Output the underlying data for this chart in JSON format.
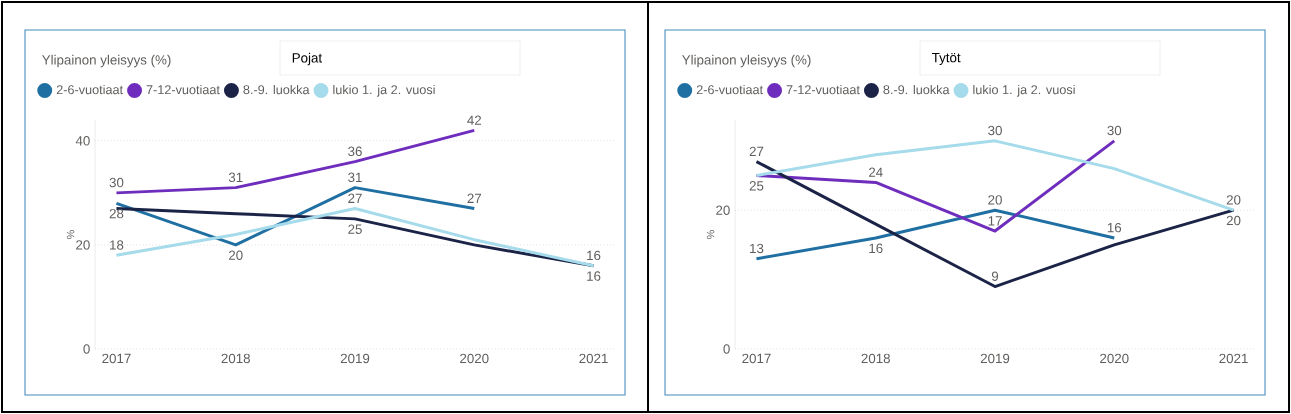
{
  "chart_data": [
    {
      "type": "line",
      "title": "Ylipainon yleisyys (%)",
      "subtitle": "Pojat",
      "ylabel": "%",
      "categories": [
        "2017",
        "2018",
        "2019",
        "2020",
        "2021"
      ],
      "ylim": [
        0,
        44
      ],
      "yticks": [
        0,
        20,
        40
      ],
      "grid": "y",
      "legend": "top left",
      "line_style": "solid",
      "marker": "none",
      "series": [
        {
          "name": "2-6-vuotiaat",
          "color": "#1f6fa3",
          "values": [
            28,
            20,
            31,
            27,
            null
          ],
          "value_labels": [
            "28",
            "20",
            "31",
            "27",
            null
          ]
        },
        {
          "name": "7-12-vuotiaat",
          "color": "#6f2dbd",
          "values": [
            30,
            31,
            36,
            42,
            null
          ],
          "value_labels": [
            "30",
            "31",
            "36",
            "42",
            null
          ]
        },
        {
          "name": "8.-9. luokka",
          "color": "#1b2347",
          "values": [
            27,
            26,
            25,
            20,
            16
          ],
          "value_labels": [
            null,
            null,
            "25",
            null,
            "16"
          ]
        },
        {
          "name": "lukio 1. ja 2. vuosi",
          "color": "#a5dbea",
          "values": [
            18,
            22,
            27,
            21,
            16
          ],
          "value_labels": [
            "18",
            null,
            "27",
            null,
            "16"
          ]
        }
      ]
    },
    {
      "type": "line",
      "title": "Ylipainon yleisyys (%)",
      "subtitle": "Tytöt",
      "ylabel": "%",
      "categories": [
        "2017",
        "2018",
        "2019",
        "2020",
        "2021"
      ],
      "ylim": [
        0,
        33
      ],
      "yticks": [
        0,
        20
      ],
      "grid": "y",
      "legend": "top left",
      "line_style": "solid",
      "marker": "none",
      "series": [
        {
          "name": "2-6-vuotiaat",
          "color": "#1f6fa3",
          "values": [
            13,
            16,
            20,
            16,
            null
          ],
          "value_labels": [
            "13",
            "16",
            "20",
            "16",
            null
          ]
        },
        {
          "name": "7-12-vuotiaat",
          "color": "#6f2dbd",
          "values": [
            25,
            24,
            17,
            30,
            null
          ],
          "value_labels": [
            "25",
            "24",
            "17",
            "30",
            null
          ]
        },
        {
          "name": "8.-9. luokka",
          "color": "#1b2347",
          "values": [
            27,
            18,
            9,
            15,
            20
          ],
          "value_labels": [
            "27",
            null,
            "9",
            null,
            "20"
          ]
        },
        {
          "name": "lukio 1. ja 2. vuosi",
          "color": "#a5dbea",
          "values": [
            25,
            28,
            30,
            26,
            20
          ],
          "value_labels": [
            null,
            null,
            "30",
            null,
            "20"
          ]
        }
      ]
    }
  ]
}
